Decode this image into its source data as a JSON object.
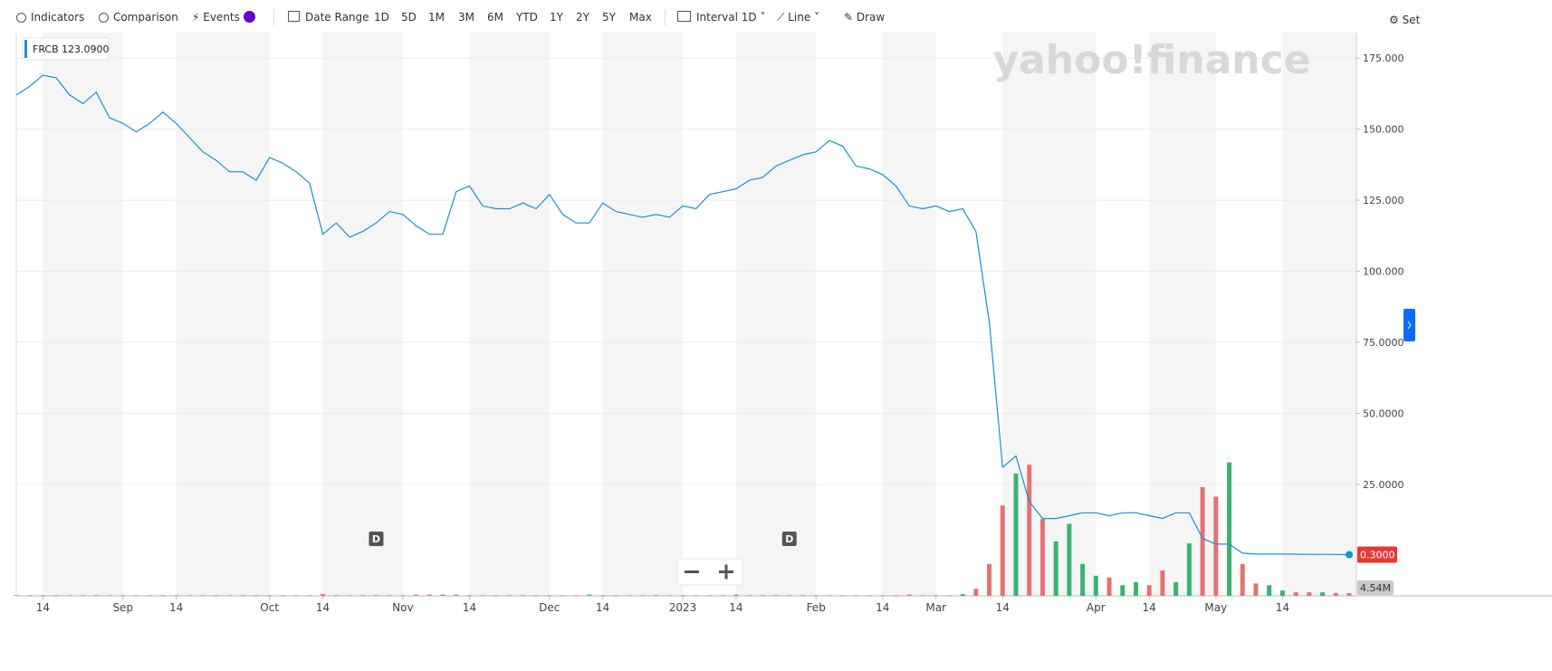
{
  "toolbar": {
    "indicators": "Indicators",
    "comparison": "Comparison",
    "events": "Events",
    "date_range": "Date Range",
    "ranges": [
      "1D",
      "5D",
      "1M",
      "3M",
      "6M",
      "YTD",
      "1Y",
      "2Y",
      "5Y",
      "Max"
    ],
    "interval": "Interval",
    "interval_value": "1D",
    "chart_type": "Line",
    "draw": "Draw",
    "settings": "Set"
  },
  "watermark": "yahoo!finance",
  "chart_data": {
    "type": "line",
    "categories": [
      null,
      null,
      "14",
      null,
      null,
      null,
      null,
      null,
      "Sep",
      null,
      null,
      null,
      "14",
      null,
      null,
      null,
      null,
      null,
      null,
      "Oct",
      null,
      null,
      null,
      "14",
      null,
      null,
      null,
      null,
      null,
      "Nov",
      null,
      null,
      null,
      null,
      "14",
      null,
      null,
      null,
      null,
      null,
      "Dec",
      null,
      null,
      null,
      "14",
      null,
      null,
      null,
      null,
      null,
      "2023",
      null,
      null,
      null,
      "14",
      null,
      null,
      null,
      null,
      null,
      "Feb",
      null,
      null,
      null,
      null,
      "14",
      null,
      null,
      null,
      "Mar",
      null,
      null,
      null,
      null,
      "14",
      null,
      null,
      null,
      null,
      null,
      null,
      "Apr",
      null,
      null,
      null,
      "14",
      null,
      null,
      null,
      null,
      "May",
      null,
      null,
      null,
      null,
      "14",
      null,
      null,
      null,
      null,
      null
    ],
    "series": [
      {
        "name": "FRCB",
        "color": "#1a8fd1",
        "legend_value": "123.0900",
        "last_label": "0.3000",
        "values": [
          162,
          165,
          169,
          168,
          162,
          159,
          163,
          154,
          152,
          149,
          152,
          156,
          152,
          147,
          142,
          139,
          135,
          135,
          132,
          140,
          138,
          135,
          131,
          113,
          117,
          112,
          114,
          117,
          121,
          120,
          116,
          113,
          113,
          128,
          130,
          123,
          122,
          122,
          124,
          122,
          127,
          120,
          117,
          117,
          124,
          121,
          120,
          119,
          120,
          119,
          123,
          122,
          127,
          128,
          129,
          132,
          133,
          137,
          139,
          141,
          142,
          146,
          144,
          137,
          136,
          134,
          130,
          123,
          122,
          123,
          121,
          122,
          114,
          82,
          31,
          35,
          19,
          13,
          13,
          14,
          15,
          15,
          14,
          15,
          15,
          14,
          13,
          15,
          15,
          6,
          4,
          4,
          0.8,
          0.5,
          0.5,
          0.5,
          0.45,
          0.4,
          0.4,
          0.35,
          0.3
        ]
      },
      {
        "type": "bar",
        "axis": "y2",
        "up_color": "#3cb371",
        "down_color": "#e57373",
        "last_label": "4.54M",
        "values": [
          1,
          1,
          1,
          1,
          1,
          1,
          1,
          1,
          1,
          1,
          1,
          1,
          1,
          1,
          1,
          1,
          1,
          1,
          1,
          1,
          1,
          1,
          1,
          3,
          1,
          1,
          1,
          1,
          1,
          1,
          2,
          2,
          2,
          2,
          1,
          1,
          1,
          1,
          1,
          1,
          1,
          1,
          1,
          2,
          1,
          1,
          1,
          1,
          1,
          1,
          1,
          1,
          1,
          1,
          2,
          1,
          1,
          1,
          1,
          1,
          1,
          1,
          1,
          1,
          1,
          1,
          1,
          2,
          1,
          1,
          1,
          3,
          12,
          54,
          153,
          207,
          222,
          130,
          92,
          122,
          54,
          34,
          31,
          18,
          23,
          18,
          43,
          23,
          89,
          184,
          168,
          226,
          54,
          21,
          18,
          9,
          6,
          6,
          6,
          5,
          4.54
        ]
      }
    ],
    "ylim": [
      -14.2,
      184.6
    ],
    "yticks": [
      {
        "value": 175,
        "label": "175.000"
      },
      {
        "value": 150,
        "label": "150.000"
      },
      {
        "value": 125,
        "label": "125.000"
      },
      {
        "value": 100,
        "label": "100.000"
      },
      {
        "value": 75,
        "label": "75.0000"
      },
      {
        "value": 50,
        "label": "50.0000"
      },
      {
        "value": 25,
        "label": "25.0000"
      }
    ],
    "y2lim": [
      0,
      230
    ],
    "grid": true,
    "annotations": [
      {
        "text": "D",
        "x": 27
      },
      {
        "text": "D",
        "x": 58
      }
    ]
  }
}
